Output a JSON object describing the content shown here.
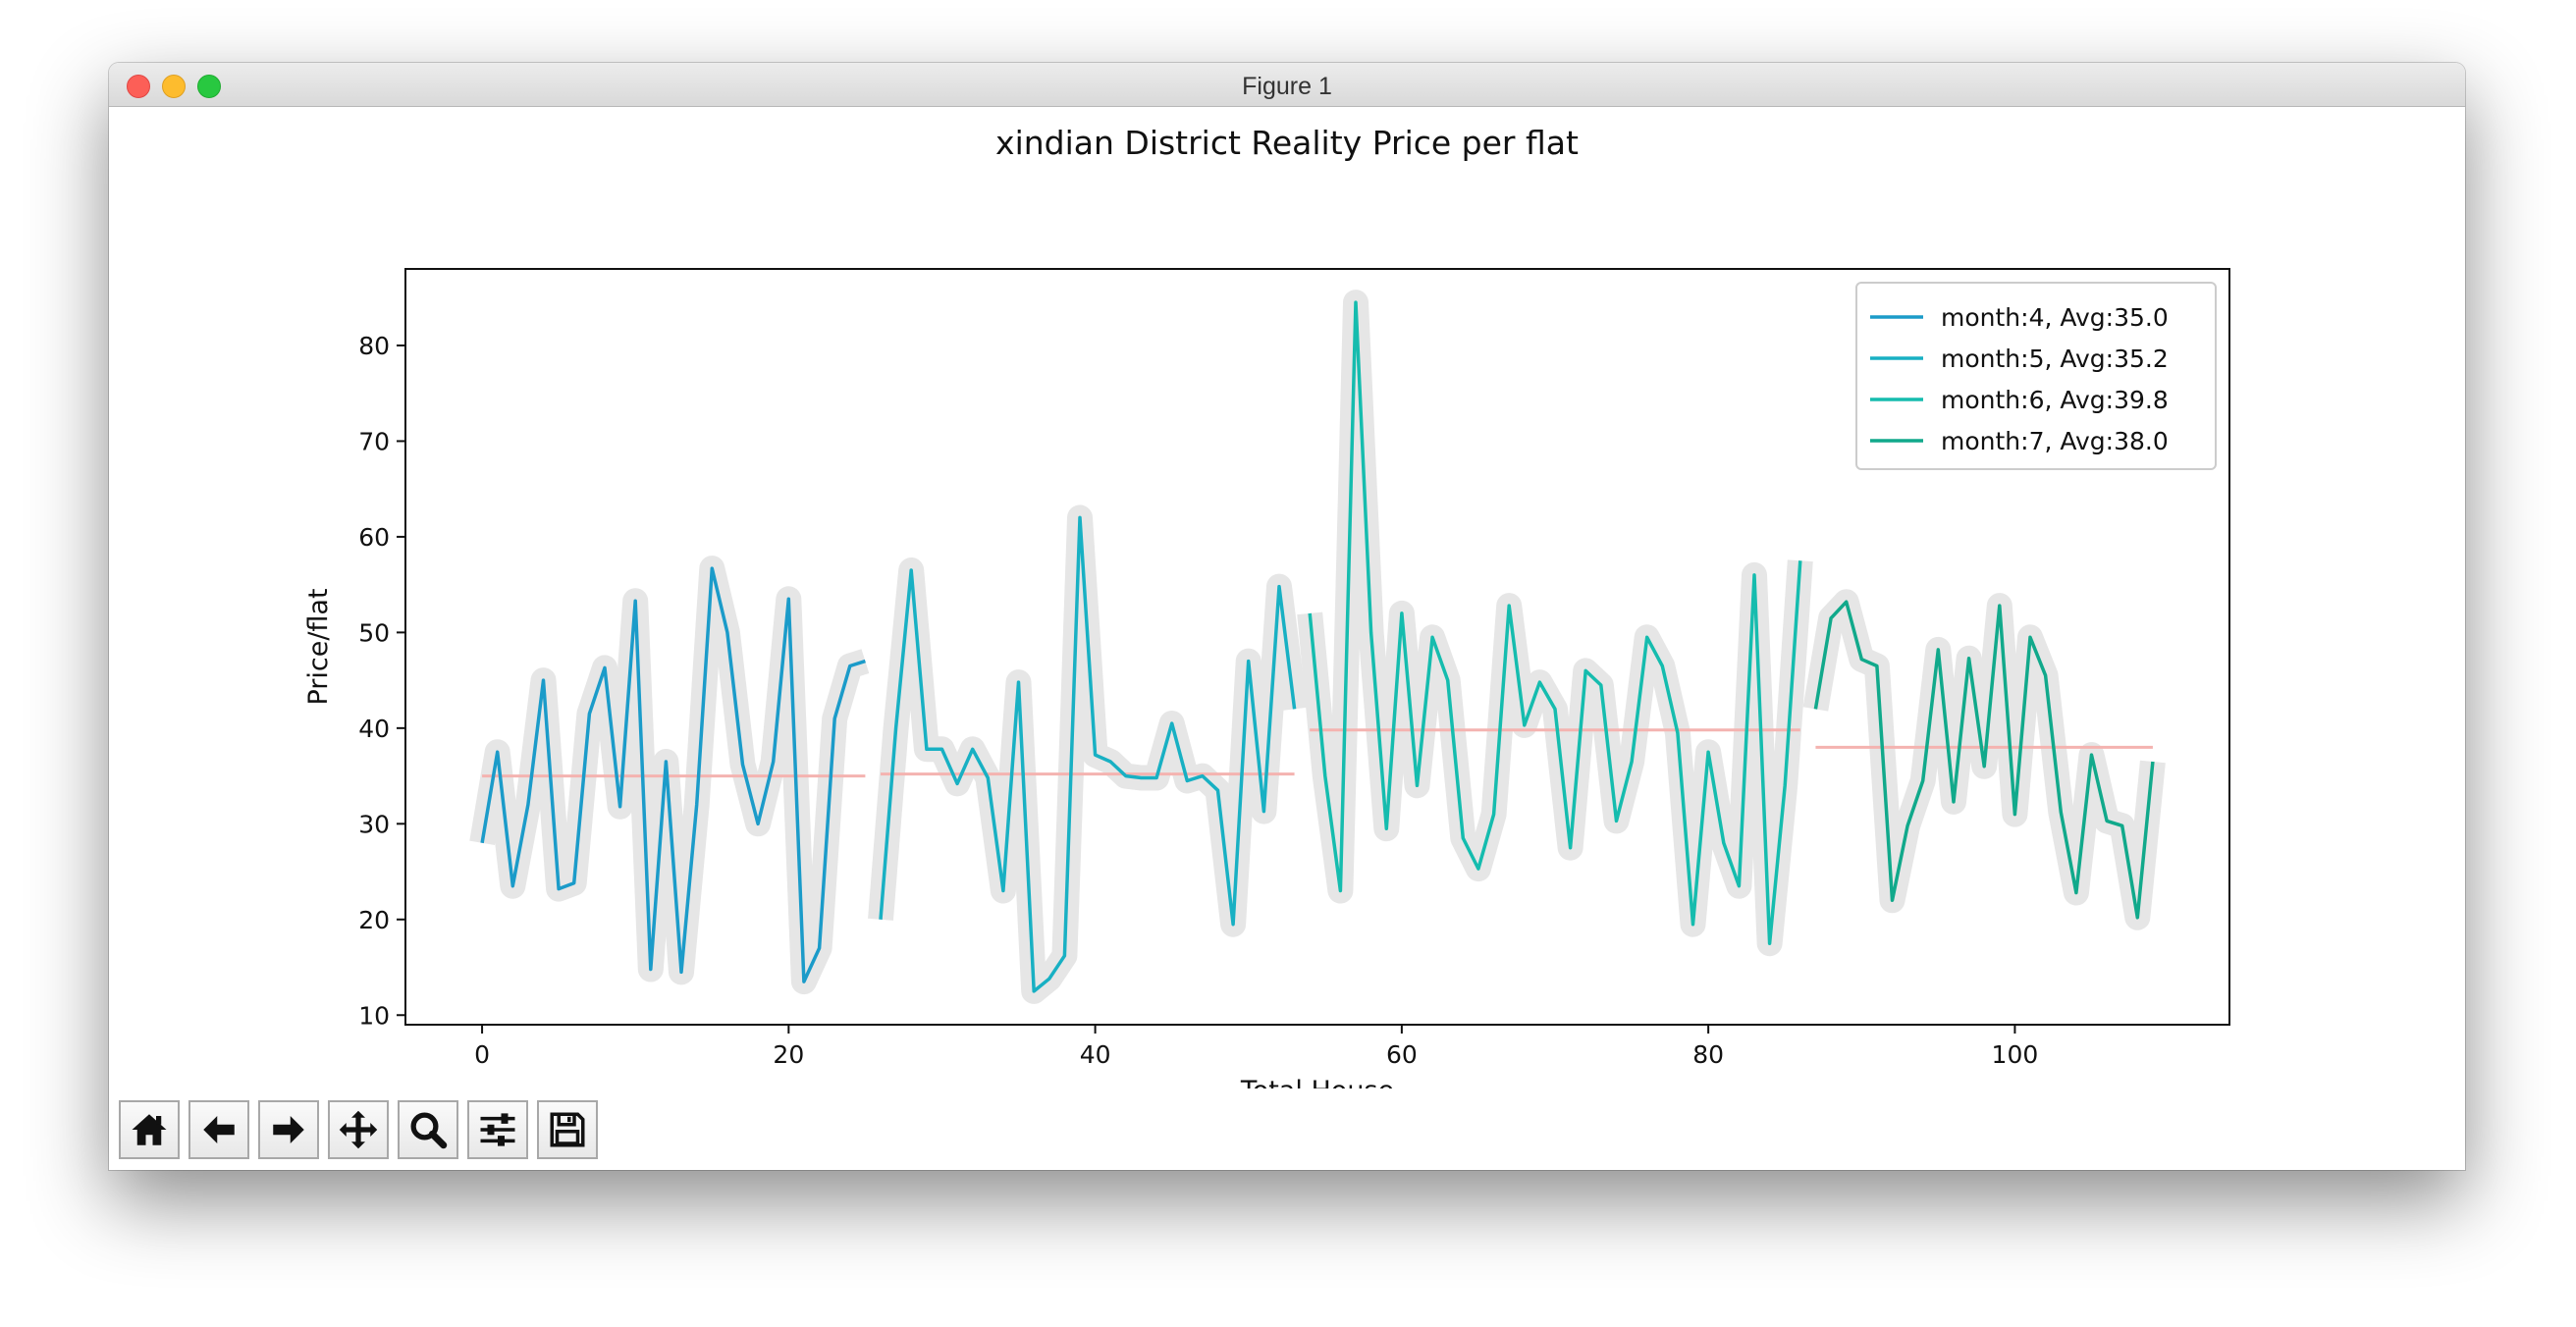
{
  "window": {
    "title": "Figure 1"
  },
  "toolbar": {
    "buttons": [
      {
        "name": "home-button",
        "icon": "home-icon"
      },
      {
        "name": "back-button",
        "icon": "arrow-left-icon"
      },
      {
        "name": "forward-button",
        "icon": "arrow-right-icon"
      },
      {
        "name": "pan-button",
        "icon": "move-icon"
      },
      {
        "name": "zoom-button",
        "icon": "magnifier-icon"
      },
      {
        "name": "configure-subplots-button",
        "icon": "sliders-icon"
      },
      {
        "name": "save-button",
        "icon": "floppy-disk-icon"
      }
    ]
  },
  "chart_data": {
    "type": "line",
    "title": "xindian District Reality Price per flat",
    "xlabel": "Total House",
    "ylabel": "Price/flat",
    "xlim": [
      -5,
      114
    ],
    "ylim": [
      9,
      88
    ],
    "xticks": [
      0,
      20,
      40,
      60,
      80,
      100
    ],
    "yticks": [
      10,
      20,
      30,
      40,
      50,
      60,
      70,
      80
    ],
    "grid": false,
    "legend_position": "upper-right",
    "average_line_color": "#f4b3b0",
    "shadow_color": "#e6e6e6",
    "series": [
      {
        "name": "month:4, Avg:35.0",
        "color": "#1b9bc9",
        "avg": 35.0,
        "x_start": 0,
        "values": [
          28,
          37.5,
          23.5,
          32,
          45,
          23.2,
          23.8,
          41.5,
          46.3,
          31.8,
          53.3,
          14.8,
          36.5,
          14.5,
          32,
          56.7,
          50,
          36.2,
          30,
          36.5,
          53.5,
          13.5,
          17,
          41,
          46.5,
          47
        ]
      },
      {
        "name": "month:5, Avg:35.2",
        "color": "#18b0c3",
        "avg": 35.2,
        "x_start": 26,
        "values": [
          20,
          40,
          56.5,
          37.8,
          37.8,
          34.2,
          37.8,
          34.8,
          23,
          44.8,
          12.5,
          13.8,
          16.2,
          62,
          37.2,
          36.5,
          35,
          34.8,
          34.8,
          40.5,
          34.5,
          35,
          33.5,
          19.5,
          47,
          31.3,
          54.8,
          42
        ]
      },
      {
        "name": "month:6, Avg:39.8",
        "color": "#15bcae",
        "avg": 39.8,
        "x_start": 54,
        "values": [
          52,
          35,
          23,
          84.5,
          50,
          29.5,
          52,
          34,
          49.5,
          45,
          28.5,
          25.3,
          31,
          52.8,
          40.3,
          44.8,
          42,
          27.5,
          46,
          44.5,
          30.3,
          36.5,
          49.5,
          46.5,
          39.5,
          19.5,
          37.5,
          28,
          23.5,
          56,
          17.5,
          34,
          57.5
        ]
      },
      {
        "name": "month:7, Avg:38.0",
        "color": "#11a98b",
        "avg": 38.0,
        "x_start": 87,
        "values": [
          42,
          51.5,
          53.2,
          47.2,
          46.5,
          22,
          29.8,
          34.5,
          48.2,
          32.3,
          47.3,
          36,
          52.8,
          31,
          49.5,
          45.5,
          31.2,
          22.8,
          37.2,
          30.3,
          29.8,
          20.2,
          36.5
        ]
      }
    ]
  }
}
